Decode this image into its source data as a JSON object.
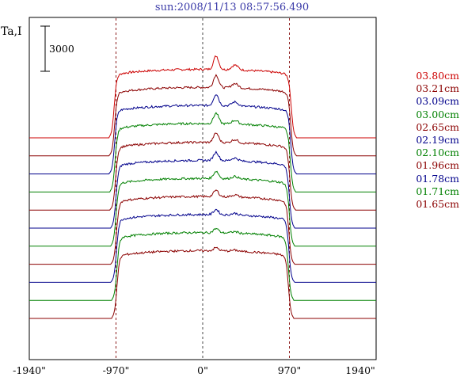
{
  "header": {
    "title": "sun:2008/11/13 08:57:56.490",
    "y_axis_name": "Ta,I",
    "scale_bar_label": "3000"
  },
  "chart_data": {
    "type": "line",
    "title": "sun:2008/11/13 08:57:56.490",
    "ylabel": "Ta,I",
    "x_ticks": [
      "-1940\"",
      "-970\"",
      "0\"",
      "970\"",
      "1940\""
    ],
    "x_tick_values": [
      -1940,
      -970,
      0,
      970,
      1940
    ],
    "xlim": [
      -1940,
      1940
    ],
    "vertical_reference_lines": [
      -970,
      0,
      970
    ],
    "scale_bar_value": 3000,
    "grid": false,
    "legend_position": "right",
    "series": [
      {
        "name": "03.80cm",
        "color": "#cc0000",
        "baseline": 0,
        "plateau": 4550,
        "limb_radius": 990
      },
      {
        "name": "03.21cm",
        "color": "#8b0000",
        "baseline": -1200,
        "plateau": 4550,
        "limb_radius": 985
      },
      {
        "name": "03.09cm",
        "color": "#00008b",
        "baseline": -2400,
        "plateau": 4550,
        "limb_radius": 985
      },
      {
        "name": "03.00cm",
        "color": "#008000",
        "baseline": -3600,
        "plateau": 4550,
        "limb_radius": 980
      },
      {
        "name": "02.65cm",
        "color": "#8b0000",
        "baseline": -4800,
        "plateau": 4500,
        "limb_radius": 975
      },
      {
        "name": "02.19cm",
        "color": "#00008b",
        "baseline": -6000,
        "plateau": 4500,
        "limb_radius": 970
      },
      {
        "name": "02.10cm",
        "color": "#008000",
        "baseline": -7200,
        "plateau": 4500,
        "limb_radius": 970
      },
      {
        "name": "01.96cm",
        "color": "#8b0000",
        "baseline": -8400,
        "plateau": 4500,
        "limb_radius": 965
      },
      {
        "name": "01.78cm",
        "color": "#00008b",
        "baseline": -9600,
        "plateau": 4500,
        "limb_radius": 965
      },
      {
        "name": "01.71cm",
        "color": "#008000",
        "baseline": -10800,
        "plateau": 4500,
        "limb_radius": 960
      },
      {
        "name": "01.65cm",
        "color": "#8b0000",
        "baseline": -12000,
        "plateau": 4500,
        "limb_radius": 960
      }
    ]
  }
}
